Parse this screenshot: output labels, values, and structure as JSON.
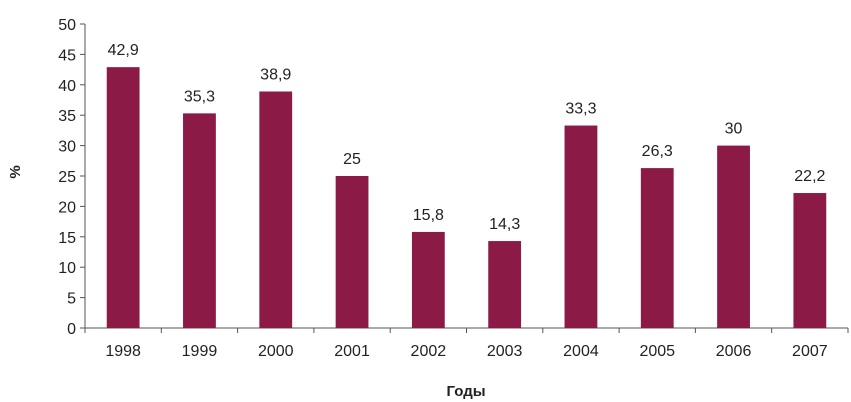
{
  "chart_data": {
    "type": "bar",
    "categories": [
      "1998",
      "1999",
      "2000",
      "2001",
      "2002",
      "2003",
      "2004",
      "2005",
      "2006",
      "2007"
    ],
    "values": [
      42.9,
      35.3,
      38.9,
      25,
      15.8,
      14.3,
      33.3,
      26.3,
      30,
      22.2
    ],
    "data_labels": [
      "42,9",
      "35,3",
      "38,9",
      "25",
      "15,8",
      "14,3",
      "33,3",
      "26,3",
      "30",
      "22,2"
    ],
    "title": "",
    "xlabel": "Годы",
    "ylabel": "%",
    "ylim": [
      0,
      50
    ],
    "yticks": [
      0,
      5,
      10,
      15,
      20,
      25,
      30,
      35,
      40,
      45,
      50
    ],
    "grid": false,
    "legend": "none",
    "bar_color": "#8B1A47"
  }
}
